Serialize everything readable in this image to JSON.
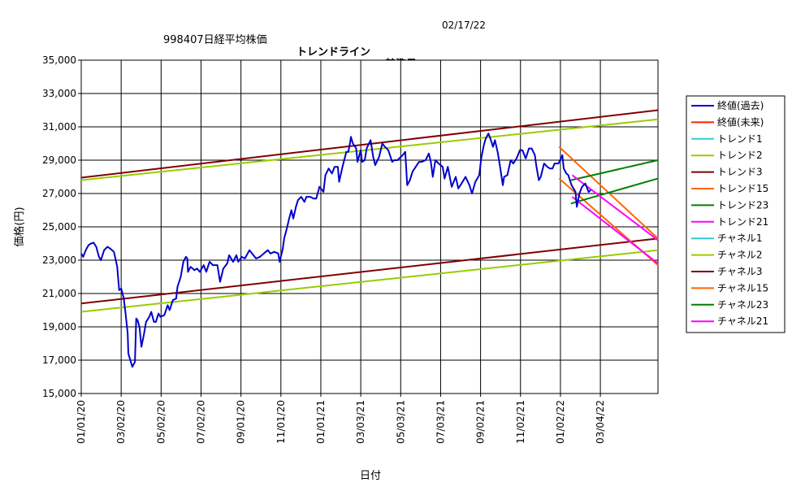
{
  "title": {
    "code_name": "998407日経平均株価",
    "main": "トレンドライン",
    "base_label": "基準日:",
    "base_date": "02/17/22"
  },
  "chart_data": {
    "type": "line",
    "xlabel": "日付",
    "ylabel": "価格(円)",
    "ylim": [
      15000,
      35000
    ],
    "xlim": [
      "2020-01-01",
      "2022-05-31"
    ],
    "y_ticks": [
      "35,000",
      "33,000",
      "31,000",
      "29,000",
      "27,000",
      "25,000",
      "23,000",
      "21,000",
      "19,000",
      "17,000",
      "15,000"
    ],
    "x_ticks": [
      "01/01/20",
      "03/02/20",
      "05/02/20",
      "07/02/20",
      "09/01/20",
      "11/01/20",
      "01/01/21",
      "03/03/21",
      "05/03/21",
      "07/03/21",
      "09/02/21",
      "11/02/21",
      "01/02/22",
      "03/04/22"
    ],
    "grid": true,
    "legend_position": "right",
    "legend": [
      {
        "label": "終値(過去)",
        "color": "#0000cc"
      },
      {
        "label": "終値(未来)",
        "color": "#ff2200"
      },
      {
        "label": "トレンド1",
        "color": "#33cccc"
      },
      {
        "label": "トレンド2",
        "color": "#99cc00"
      },
      {
        "label": "トレンド3",
        "color": "#800000"
      },
      {
        "label": "トレンド15",
        "color": "#ff6600"
      },
      {
        "label": "トレンド23",
        "color": "#008000"
      },
      {
        "label": "トレンド21",
        "color": "#ff00ff"
      },
      {
        "label": "チャネル1",
        "color": "#33cccc"
      },
      {
        "label": "チャネル2",
        "color": "#99cc00"
      },
      {
        "label": "チャネル3",
        "color": "#800000"
      },
      {
        "label": "チャネル15",
        "color": "#ff6600"
      },
      {
        "label": "チャネル23",
        "color": "#008000"
      },
      {
        "label": "チャネル21",
        "color": "#ff00ff"
      }
    ],
    "close_past": [
      [
        "2020-01-01",
        23400
      ],
      [
        "2020-01-04",
        23200
      ],
      [
        "2020-01-08",
        23600
      ],
      [
        "2020-01-12",
        23900
      ],
      [
        "2020-01-16",
        24000
      ],
      [
        "2020-01-20",
        24050
      ],
      [
        "2020-01-24",
        23800
      ],
      [
        "2020-01-28",
        23200
      ],
      [
        "2020-01-31",
        23000
      ],
      [
        "2020-02-05",
        23600
      ],
      [
        "2020-02-10",
        23800
      ],
      [
        "2020-02-14",
        23700
      ],
      [
        "2020-02-20",
        23500
      ],
      [
        "2020-02-25",
        22600
      ],
      [
        "2020-02-28",
        21200
      ],
      [
        "2020-03-02",
        21300
      ],
      [
        "2020-03-06",
        20700
      ],
      [
        "2020-03-09",
        19700
      ],
      [
        "2020-03-12",
        18600
      ],
      [
        "2020-03-13",
        17400
      ],
      [
        "2020-03-16",
        17000
      ],
      [
        "2020-03-19",
        16600
      ],
      [
        "2020-03-23",
        16900
      ],
      [
        "2020-03-25",
        19500
      ],
      [
        "2020-03-27",
        19400
      ],
      [
        "2020-03-30",
        19000
      ],
      [
        "2020-04-02",
        17800
      ],
      [
        "2020-04-06",
        18600
      ],
      [
        "2020-04-09",
        19300
      ],
      [
        "2020-04-14",
        19600
      ],
      [
        "2020-04-17",
        19900
      ],
      [
        "2020-04-21",
        19300
      ],
      [
        "2020-04-24",
        19300
      ],
      [
        "2020-04-28",
        19800
      ],
      [
        "2020-05-01",
        19600
      ],
      [
        "2020-05-07",
        19700
      ],
      [
        "2020-05-12",
        20300
      ],
      [
        "2020-05-15",
        20000
      ],
      [
        "2020-05-20",
        20600
      ],
      [
        "2020-05-25",
        20700
      ],
      [
        "2020-05-27",
        21400
      ],
      [
        "2020-06-01",
        22000
      ],
      [
        "2020-06-05",
        22900
      ],
      [
        "2020-06-09",
        23200
      ],
      [
        "2020-06-11",
        23100
      ],
      [
        "2020-06-12",
        22300
      ],
      [
        "2020-06-16",
        22600
      ],
      [
        "2020-06-22",
        22400
      ],
      [
        "2020-06-26",
        22500
      ],
      [
        "2020-06-30",
        22300
      ],
      [
        "2020-07-06",
        22700
      ],
      [
        "2020-07-10",
        22300
      ],
      [
        "2020-07-15",
        22900
      ],
      [
        "2020-07-20",
        22700
      ],
      [
        "2020-07-27",
        22700
      ],
      [
        "2020-07-31",
        21700
      ],
      [
        "2020-08-05",
        22500
      ],
      [
        "2020-08-11",
        22800
      ],
      [
        "2020-08-14",
        23300
      ],
      [
        "2020-08-20",
        22900
      ],
      [
        "2020-08-25",
        23300
      ],
      [
        "2020-08-28",
        22900
      ],
      [
        "2020-09-02",
        23200
      ],
      [
        "2020-09-07",
        23100
      ],
      [
        "2020-09-14",
        23600
      ],
      [
        "2020-09-18",
        23400
      ],
      [
        "2020-09-24",
        23100
      ],
      [
        "2020-09-30",
        23200
      ],
      [
        "2020-10-06",
        23400
      ],
      [
        "2020-10-12",
        23600
      ],
      [
        "2020-10-16",
        23400
      ],
      [
        "2020-10-22",
        23500
      ],
      [
        "2020-10-28",
        23400
      ],
      [
        "2020-10-30",
        22900
      ],
      [
        "2020-11-04",
        23700
      ],
      [
        "2020-11-06",
        24300
      ],
      [
        "2020-11-10",
        24900
      ],
      [
        "2020-11-13",
        25400
      ],
      [
        "2020-11-17",
        26000
      ],
      [
        "2020-11-20",
        25500
      ],
      [
        "2020-11-24",
        26200
      ],
      [
        "2020-11-27",
        26600
      ],
      [
        "2020-12-02",
        26800
      ],
      [
        "2020-12-07",
        26500
      ],
      [
        "2020-12-10",
        26800
      ],
      [
        "2020-12-16",
        26800
      ],
      [
        "2020-12-21",
        26700
      ],
      [
        "2020-12-25",
        26700
      ],
      [
        "2020-12-30",
        27400
      ],
      [
        "2021-01-05",
        27100
      ],
      [
        "2021-01-08",
        28100
      ],
      [
        "2021-01-13",
        28500
      ],
      [
        "2021-01-18",
        28200
      ],
      [
        "2021-01-22",
        28600
      ],
      [
        "2021-01-27",
        28600
      ],
      [
        "2021-01-29",
        27700
      ],
      [
        "2021-02-03",
        28600
      ],
      [
        "2021-02-09",
        29500
      ],
      [
        "2021-02-12",
        29500
      ],
      [
        "2021-02-15",
        30100
      ],
      [
        "2021-02-16",
        30400
      ],
      [
        "2021-02-19",
        30000
      ],
      [
        "2021-02-24",
        29700
      ],
      [
        "2021-02-26",
        28900
      ],
      [
        "2021-03-03",
        29600
      ],
      [
        "2021-03-05",
        28900
      ],
      [
        "2021-03-09",
        29000
      ],
      [
        "2021-03-12",
        29700
      ],
      [
        "2021-03-18",
        30200
      ],
      [
        "2021-03-22",
        29200
      ],
      [
        "2021-03-25",
        28700
      ],
      [
        "2021-03-31",
        29200
      ],
      [
        "2021-04-05",
        30000
      ],
      [
        "2021-04-09",
        29800
      ],
      [
        "2021-04-14",
        29600
      ],
      [
        "2021-04-20",
        28900
      ],
      [
        "2021-04-23",
        29000
      ],
      [
        "2021-04-28",
        29000
      ],
      [
        "2021-05-06",
        29300
      ],
      [
        "2021-05-10",
        29500
      ],
      [
        "2021-05-13",
        27500
      ],
      [
        "2021-05-17",
        27800
      ],
      [
        "2021-05-21",
        28300
      ],
      [
        "2021-05-26",
        28600
      ],
      [
        "2021-05-31",
        28900
      ],
      [
        "2021-06-04",
        28900
      ],
      [
        "2021-06-10",
        29000
      ],
      [
        "2021-06-15",
        29400
      ],
      [
        "2021-06-18",
        28900
      ],
      [
        "2021-06-21",
        28000
      ],
      [
        "2021-06-25",
        29000
      ],
      [
        "2021-06-30",
        28800
      ],
      [
        "2021-07-06",
        28600
      ],
      [
        "2021-07-09",
        27900
      ],
      [
        "2021-07-14",
        28600
      ],
      [
        "2021-07-20",
        27400
      ],
      [
        "2021-07-26",
        28000
      ],
      [
        "2021-07-30",
        27300
      ],
      [
        "2021-08-04",
        27600
      ],
      [
        "2021-08-10",
        28000
      ],
      [
        "2021-08-16",
        27500
      ],
      [
        "2021-08-20",
        27000
      ],
      [
        "2021-08-25",
        27700
      ],
      [
        "2021-08-31",
        28100
      ],
      [
        "2021-09-03",
        29100
      ],
      [
        "2021-09-07",
        29900
      ],
      [
        "2021-09-10",
        30300
      ],
      [
        "2021-09-14",
        30600
      ],
      [
        "2021-09-17",
        30300
      ],
      [
        "2021-09-21",
        29800
      ],
      [
        "2021-09-24",
        30200
      ],
      [
        "2021-09-28",
        29500
      ],
      [
        "2021-10-01",
        28800
      ],
      [
        "2021-10-06",
        27500
      ],
      [
        "2021-10-08",
        28000
      ],
      [
        "2021-10-13",
        28100
      ],
      [
        "2021-10-18",
        29000
      ],
      [
        "2021-10-22",
        28800
      ],
      [
        "2021-10-27",
        29100
      ],
      [
        "2021-11-01",
        29600
      ],
      [
        "2021-11-05",
        29600
      ],
      [
        "2021-11-10",
        29100
      ],
      [
        "2021-11-15",
        29700
      ],
      [
        "2021-11-19",
        29700
      ],
      [
        "2021-11-24",
        29300
      ],
      [
        "2021-11-26",
        28700
      ],
      [
        "2021-11-30",
        27800
      ],
      [
        "2021-12-03",
        28000
      ],
      [
        "2021-12-08",
        28800
      ],
      [
        "2021-12-13",
        28600
      ],
      [
        "2021-12-17",
        28500
      ],
      [
        "2021-12-21",
        28500
      ],
      [
        "2021-12-24",
        28800
      ],
      [
        "2021-12-30",
        28800
      ],
      [
        "2022-01-05",
        29300
      ],
      [
        "2022-01-07",
        28500
      ],
      [
        "2022-01-11",
        28200
      ],
      [
        "2022-01-14",
        28100
      ],
      [
        "2022-01-19",
        27500
      ],
      [
        "2022-01-25",
        27100
      ],
      [
        "2022-01-27",
        26200
      ],
      [
        "2022-01-31",
        27000
      ],
      [
        "2022-02-04",
        27400
      ],
      [
        "2022-02-09",
        27600
      ],
      [
        "2022-02-14",
        27100
      ],
      [
        "2022-02-17",
        27200
      ]
    ],
    "trend_lines": [
      {
        "name": "トレンド2",
        "color": "#99cc00",
        "points": [
          [
            "2020-01-01",
            27800
          ],
          [
            "2022-05-31",
            31450
          ]
        ]
      },
      {
        "name": "トレンド3",
        "color": "#800000",
        "points": [
          [
            "2020-01-01",
            27950
          ],
          [
            "2022-05-31",
            32000
          ]
        ]
      },
      {
        "name": "チャネル2",
        "color": "#99cc00",
        "points": [
          [
            "2020-01-01",
            19900
          ],
          [
            "2022-05-31",
            23600
          ]
        ]
      },
      {
        "name": "チャネル3",
        "color": "#800000",
        "points": [
          [
            "2020-01-01",
            20400
          ],
          [
            "2022-05-31",
            24300
          ]
        ]
      },
      {
        "name": "トレンド15",
        "color": "#ff6600",
        "points": [
          [
            "2021-12-31",
            29800
          ],
          [
            "2022-05-31",
            24300
          ]
        ]
      },
      {
        "name": "チャネル15",
        "color": "#ff6600",
        "points": [
          [
            "2021-12-31",
            27900
          ],
          [
            "2022-05-31",
            22700
          ]
        ]
      },
      {
        "name": "トレンド23",
        "color": "#008000",
        "points": [
          [
            "2022-01-18",
            27800
          ],
          [
            "2022-05-31",
            29000
          ]
        ]
      },
      {
        "name": "チャネル23",
        "color": "#008000",
        "points": [
          [
            "2022-01-18",
            26400
          ],
          [
            "2022-05-31",
            27900
          ]
        ]
      },
      {
        "name": "トレンド21",
        "color": "#ff00ff",
        "points": [
          [
            "2022-01-20",
            28100
          ],
          [
            "2022-05-31",
            24200
          ]
        ]
      },
      {
        "name": "チャネル21",
        "color": "#ff00ff",
        "points": [
          [
            "2022-01-20",
            26800
          ],
          [
            "2022-05-31",
            22800
          ]
        ]
      }
    ]
  }
}
